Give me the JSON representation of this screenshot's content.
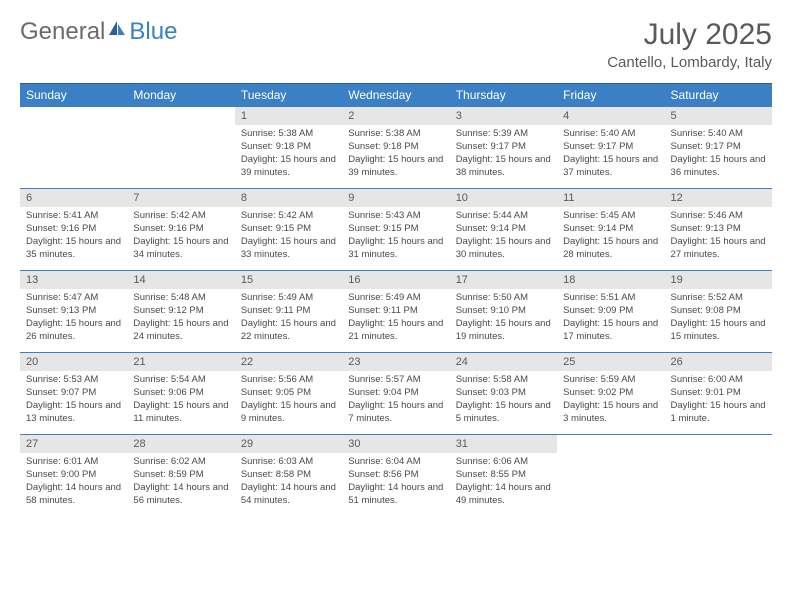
{
  "logo": {
    "text_general": "General",
    "text_blue": "Blue"
  },
  "header": {
    "title": "July 2025",
    "location": "Cantello, Lombardy, Italy"
  },
  "colors": {
    "header_bg": "#3b7fc4",
    "header_border": "#2d5f94",
    "row_border": "#3b7fc4",
    "day_number_bg": "#e6e6e6",
    "text_gray": "#5a5a5a",
    "text_dark": "#4a4a4a",
    "logo_gray": "#6a6a6a",
    "logo_blue": "#3b7fc4",
    "background": "#ffffff"
  },
  "typography": {
    "title_fontsize": 30,
    "location_fontsize": 15,
    "logo_fontsize": 24,
    "header_cell_fontsize": 12,
    "day_number_fontsize": 11,
    "day_content_fontsize": 9.5
  },
  "day_headers": [
    "Sunday",
    "Monday",
    "Tuesday",
    "Wednesday",
    "Thursday",
    "Friday",
    "Saturday"
  ],
  "weeks": [
    [
      null,
      null,
      {
        "num": "1",
        "sunrise": "Sunrise: 5:38 AM",
        "sunset": "Sunset: 9:18 PM",
        "daylight": "Daylight: 15 hours and 39 minutes."
      },
      {
        "num": "2",
        "sunrise": "Sunrise: 5:38 AM",
        "sunset": "Sunset: 9:18 PM",
        "daylight": "Daylight: 15 hours and 39 minutes."
      },
      {
        "num": "3",
        "sunrise": "Sunrise: 5:39 AM",
        "sunset": "Sunset: 9:17 PM",
        "daylight": "Daylight: 15 hours and 38 minutes."
      },
      {
        "num": "4",
        "sunrise": "Sunrise: 5:40 AM",
        "sunset": "Sunset: 9:17 PM",
        "daylight": "Daylight: 15 hours and 37 minutes."
      },
      {
        "num": "5",
        "sunrise": "Sunrise: 5:40 AM",
        "sunset": "Sunset: 9:17 PM",
        "daylight": "Daylight: 15 hours and 36 minutes."
      }
    ],
    [
      {
        "num": "6",
        "sunrise": "Sunrise: 5:41 AM",
        "sunset": "Sunset: 9:16 PM",
        "daylight": "Daylight: 15 hours and 35 minutes."
      },
      {
        "num": "7",
        "sunrise": "Sunrise: 5:42 AM",
        "sunset": "Sunset: 9:16 PM",
        "daylight": "Daylight: 15 hours and 34 minutes."
      },
      {
        "num": "8",
        "sunrise": "Sunrise: 5:42 AM",
        "sunset": "Sunset: 9:15 PM",
        "daylight": "Daylight: 15 hours and 33 minutes."
      },
      {
        "num": "9",
        "sunrise": "Sunrise: 5:43 AM",
        "sunset": "Sunset: 9:15 PM",
        "daylight": "Daylight: 15 hours and 31 minutes."
      },
      {
        "num": "10",
        "sunrise": "Sunrise: 5:44 AM",
        "sunset": "Sunset: 9:14 PM",
        "daylight": "Daylight: 15 hours and 30 minutes."
      },
      {
        "num": "11",
        "sunrise": "Sunrise: 5:45 AM",
        "sunset": "Sunset: 9:14 PM",
        "daylight": "Daylight: 15 hours and 28 minutes."
      },
      {
        "num": "12",
        "sunrise": "Sunrise: 5:46 AM",
        "sunset": "Sunset: 9:13 PM",
        "daylight": "Daylight: 15 hours and 27 minutes."
      }
    ],
    [
      {
        "num": "13",
        "sunrise": "Sunrise: 5:47 AM",
        "sunset": "Sunset: 9:13 PM",
        "daylight": "Daylight: 15 hours and 26 minutes."
      },
      {
        "num": "14",
        "sunrise": "Sunrise: 5:48 AM",
        "sunset": "Sunset: 9:12 PM",
        "daylight": "Daylight: 15 hours and 24 minutes."
      },
      {
        "num": "15",
        "sunrise": "Sunrise: 5:49 AM",
        "sunset": "Sunset: 9:11 PM",
        "daylight": "Daylight: 15 hours and 22 minutes."
      },
      {
        "num": "16",
        "sunrise": "Sunrise: 5:49 AM",
        "sunset": "Sunset: 9:11 PM",
        "daylight": "Daylight: 15 hours and 21 minutes."
      },
      {
        "num": "17",
        "sunrise": "Sunrise: 5:50 AM",
        "sunset": "Sunset: 9:10 PM",
        "daylight": "Daylight: 15 hours and 19 minutes."
      },
      {
        "num": "18",
        "sunrise": "Sunrise: 5:51 AM",
        "sunset": "Sunset: 9:09 PM",
        "daylight": "Daylight: 15 hours and 17 minutes."
      },
      {
        "num": "19",
        "sunrise": "Sunrise: 5:52 AM",
        "sunset": "Sunset: 9:08 PM",
        "daylight": "Daylight: 15 hours and 15 minutes."
      }
    ],
    [
      {
        "num": "20",
        "sunrise": "Sunrise: 5:53 AM",
        "sunset": "Sunset: 9:07 PM",
        "daylight": "Daylight: 15 hours and 13 minutes."
      },
      {
        "num": "21",
        "sunrise": "Sunrise: 5:54 AM",
        "sunset": "Sunset: 9:06 PM",
        "daylight": "Daylight: 15 hours and 11 minutes."
      },
      {
        "num": "22",
        "sunrise": "Sunrise: 5:56 AM",
        "sunset": "Sunset: 9:05 PM",
        "daylight": "Daylight: 15 hours and 9 minutes."
      },
      {
        "num": "23",
        "sunrise": "Sunrise: 5:57 AM",
        "sunset": "Sunset: 9:04 PM",
        "daylight": "Daylight: 15 hours and 7 minutes."
      },
      {
        "num": "24",
        "sunrise": "Sunrise: 5:58 AM",
        "sunset": "Sunset: 9:03 PM",
        "daylight": "Daylight: 15 hours and 5 minutes."
      },
      {
        "num": "25",
        "sunrise": "Sunrise: 5:59 AM",
        "sunset": "Sunset: 9:02 PM",
        "daylight": "Daylight: 15 hours and 3 minutes."
      },
      {
        "num": "26",
        "sunrise": "Sunrise: 6:00 AM",
        "sunset": "Sunset: 9:01 PM",
        "daylight": "Daylight: 15 hours and 1 minute."
      }
    ],
    [
      {
        "num": "27",
        "sunrise": "Sunrise: 6:01 AM",
        "sunset": "Sunset: 9:00 PM",
        "daylight": "Daylight: 14 hours and 58 minutes."
      },
      {
        "num": "28",
        "sunrise": "Sunrise: 6:02 AM",
        "sunset": "Sunset: 8:59 PM",
        "daylight": "Daylight: 14 hours and 56 minutes."
      },
      {
        "num": "29",
        "sunrise": "Sunrise: 6:03 AM",
        "sunset": "Sunset: 8:58 PM",
        "daylight": "Daylight: 14 hours and 54 minutes."
      },
      {
        "num": "30",
        "sunrise": "Sunrise: 6:04 AM",
        "sunset": "Sunset: 8:56 PM",
        "daylight": "Daylight: 14 hours and 51 minutes."
      },
      {
        "num": "31",
        "sunrise": "Sunrise: 6:06 AM",
        "sunset": "Sunset: 8:55 PM",
        "daylight": "Daylight: 14 hours and 49 minutes."
      },
      null,
      null
    ]
  ]
}
